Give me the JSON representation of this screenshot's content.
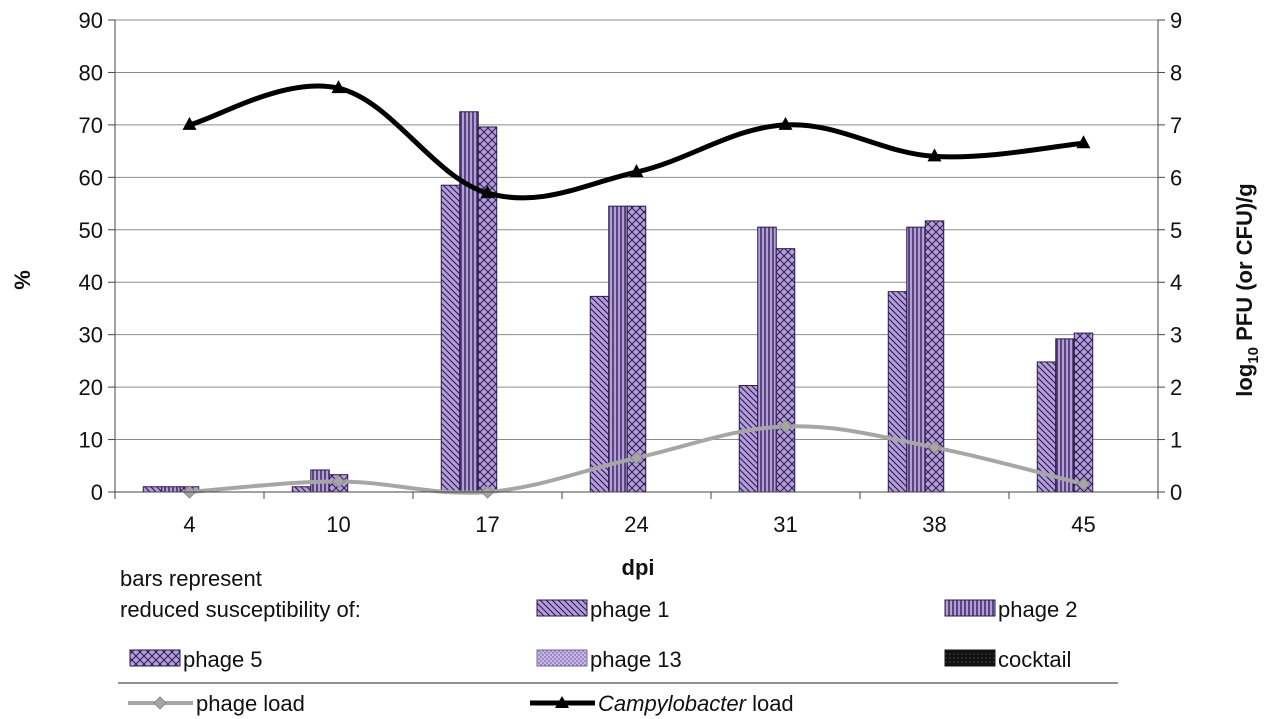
{
  "chart_data": {
    "type": "bar",
    "categories": [
      "4",
      "10",
      "17",
      "24",
      "31",
      "38",
      "45"
    ],
    "xlabel": "dpi",
    "ylabel": "%",
    "ylabel_right": {
      "prefix": "log",
      "subscript": "10",
      "suffix": " PFU (or CFU)/g"
    },
    "ylim": [
      0,
      90
    ],
    "ylim_right": [
      0,
      9
    ],
    "yticks": [
      "0",
      "10",
      "20",
      "30",
      "40",
      "50",
      "60",
      "70",
      "80",
      "90"
    ],
    "yticks_right": [
      "0",
      "1",
      "2",
      "3",
      "4",
      "5",
      "6",
      "7",
      "8",
      "9"
    ],
    "grid": true,
    "bar_series": [
      {
        "name": "phage 1",
        "values": [
          1,
          1,
          58.5,
          37.3,
          20.3,
          38.2,
          24.8
        ],
        "pattern": "diag",
        "color": "#b39ddb"
      },
      {
        "name": "phage 2",
        "values": [
          1,
          4.2,
          72.5,
          54.5,
          50.5,
          50.5,
          29.2
        ],
        "pattern": "vert",
        "color": "#b39ddb"
      },
      {
        "name": "phage 5",
        "values": [
          1,
          3.3,
          69.6,
          54.5,
          46.4,
          51.7,
          30.3
        ],
        "pattern": "cross",
        "color": "#b39ddb"
      },
      {
        "name": "phage 13",
        "values": [
          0,
          0,
          0,
          0,
          0,
          0,
          0
        ],
        "pattern": "dots",
        "color": "#c7b6e8"
      },
      {
        "name": "cocktail",
        "values": [
          0,
          0,
          0,
          0,
          0,
          0,
          0
        ],
        "pattern": "black",
        "color": "#111111"
      }
    ],
    "line_series": [
      {
        "name": "phage load",
        "axis": "right",
        "values": [
          0,
          0.2,
          0,
          0.65,
          1.25,
          0.85,
          0.15
        ],
        "color": "#a6a6a6",
        "marker": "diamond"
      },
      {
        "name": "Campylobacter load",
        "axis": "right",
        "values": [
          7.0,
          7.7,
          5.7,
          6.1,
          7.0,
          6.4,
          6.65
        ],
        "color": "#000000",
        "marker": "triangle"
      }
    ]
  },
  "legend": {
    "intro_line1": "bars represent",
    "intro_line2": "reduced susceptibility of:",
    "phage1": "phage 1",
    "phage2": "phage 2",
    "phage5": "phage 5",
    "phage13": "phage 13",
    "cocktail": "cocktail",
    "phage_load": "phage load",
    "campylobacter_italic": "Campylobacter",
    "campylobacter_rest": " load"
  }
}
